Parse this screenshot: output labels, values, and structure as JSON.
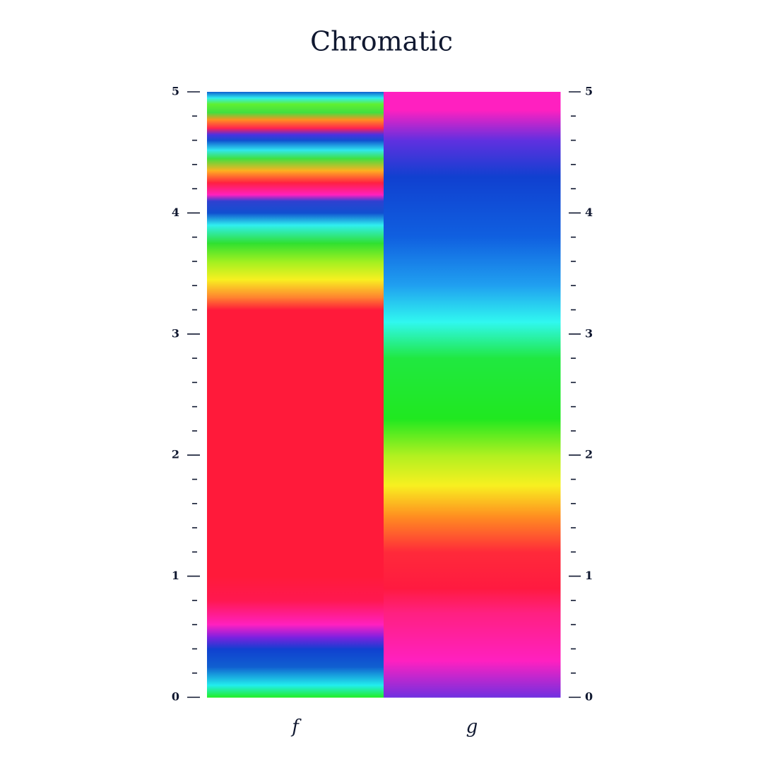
{
  "chart_data": {
    "type": "gradient",
    "title": "Chromatic",
    "ylim": [
      0,
      5
    ],
    "yticks": [
      0,
      1,
      2,
      3,
      4,
      5
    ],
    "minor_yticks": [
      0.2,
      0.4,
      0.6,
      0.8,
      1.2,
      1.4,
      1.6,
      1.8,
      2.2,
      2.4,
      2.6,
      2.8,
      3.2,
      3.4,
      3.6,
      3.8,
      4.2,
      4.4,
      4.6,
      4.8
    ],
    "series": [
      {
        "name": "f",
        "y": [
          0,
          0.1,
          0.25,
          0.4,
          0.5,
          0.6,
          0.8,
          1.0,
          3.2,
          3.3,
          3.45,
          3.6,
          3.75,
          3.9,
          4.0,
          4.1,
          4.15,
          4.25,
          4.35,
          4.45,
          4.52,
          4.6,
          4.65,
          4.7,
          4.77,
          4.83,
          4.9,
          4.95,
          5.0
        ],
        "colors": [
          "#22ee22",
          "#22eeee",
          "#1060d0",
          "#1040d0",
          "#8020e0",
          "#ff20c0",
          "#ff1850",
          "#ff1a3a",
          "#ff1a3a",
          "#ff8030",
          "#f8f020",
          "#a0f020",
          "#30e030",
          "#30f0f0",
          "#1050d0",
          "#3040d0",
          "#ff20c0",
          "#ff2040",
          "#ffb020",
          "#40e040",
          "#30e8f0",
          "#1050d0",
          "#5030e0",
          "#ff2050",
          "#ff9020",
          "#40e040",
          "#60f030",
          "#30f0f0",
          "#1060d0"
        ]
      },
      {
        "name": "g",
        "y": [
          0,
          0.3,
          0.7,
          0.9,
          1.2,
          1.5,
          1.75,
          2.0,
          2.3,
          2.8,
          3.1,
          3.4,
          3.8,
          4.3,
          4.6,
          4.85,
          5.0
        ],
        "colors": [
          "#7030e0",
          "#ff20c0",
          "#ff2080",
          "#ff1a40",
          "#ff2a3a",
          "#ff9020",
          "#f8f020",
          "#b0f020",
          "#20e820",
          "#20e840",
          "#30f8f0",
          "#20a0f0",
          "#1060e0",
          "#1040d0",
          "#6030e0",
          "#ff20c0",
          "#ff20c0"
        ]
      }
    ]
  }
}
